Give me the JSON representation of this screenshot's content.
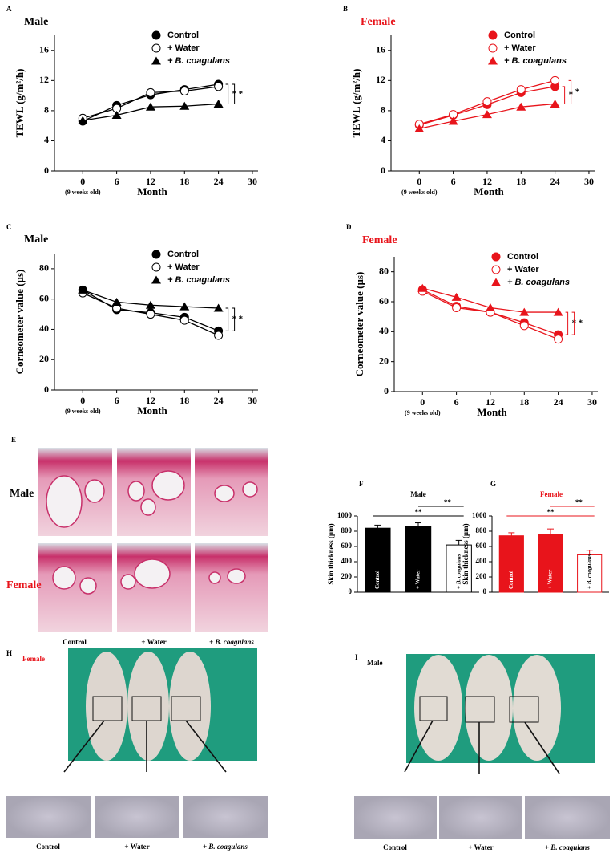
{
  "chart_data": [
    {
      "type": "line",
      "panel": "A",
      "title": "Male",
      "title_color": "#000000",
      "xlabel": "Month",
      "ylabel": "TEWL (g/m²/h)",
      "x": [
        0,
        6,
        12,
        18,
        24
      ],
      "xlim": [
        -5,
        31
      ],
      "xticks": [
        0,
        6,
        12,
        18,
        24,
        30
      ],
      "x_note": "(9 weeks old)",
      "ylim": [
        0,
        18
      ],
      "yticks": [
        0,
        4,
        8,
        12,
        16
      ],
      "series": [
        {
          "name": "Control",
          "color": "#000000",
          "marker": "circle",
          "values": [
            6.6,
            8.7,
            10.1,
            10.8,
            11.5
          ]
        },
        {
          "name": "+ Water",
          "color": "#000000",
          "marker": "circle-open",
          "values": [
            7.0,
            8.3,
            10.4,
            10.6,
            11.2
          ]
        },
        {
          "name": "+ B. coagulans",
          "color": "#000000",
          "marker": "triangle",
          "values": [
            6.7,
            7.4,
            8.5,
            8.6,
            8.9
          ]
        }
      ],
      "annotations": [
        "*",
        "*"
      ]
    },
    {
      "type": "line",
      "panel": "B",
      "title": "Female",
      "title_color": "#e8141b",
      "xlabel": "Month",
      "ylabel": "TEWL (g/m²/h)",
      "x": [
        0,
        6,
        12,
        18,
        24
      ],
      "xlim": [
        -5,
        31
      ],
      "xticks": [
        0,
        6,
        12,
        18,
        24,
        30
      ],
      "x_note": "(9 weeks old)",
      "ylim": [
        0,
        18
      ],
      "yticks": [
        0,
        4,
        8,
        12,
        16
      ],
      "series": [
        {
          "name": "Control",
          "color": "#e8141b",
          "marker": "circle",
          "values": [
            6.1,
            7.4,
            8.8,
            10.4,
            11.2
          ]
        },
        {
          "name": "+ Water",
          "color": "#e8141b",
          "marker": "circle-open",
          "values": [
            6.2,
            7.5,
            9.2,
            10.8,
            12.0
          ]
        },
        {
          "name": "+ B. coagulans",
          "color": "#e8141b",
          "marker": "triangle",
          "values": [
            5.6,
            6.6,
            7.5,
            8.5,
            8.9
          ]
        }
      ],
      "annotations": [
        "*",
        "*"
      ]
    },
    {
      "type": "line",
      "panel": "C",
      "title": "Male",
      "title_color": "#000000",
      "xlabel": "Month",
      "ylabel": "Corneometer value (µs)",
      "x": [
        0,
        6,
        12,
        18,
        24
      ],
      "xlim": [
        -5,
        31
      ],
      "xticks": [
        0,
        6,
        12,
        18,
        24,
        30
      ],
      "x_note": "(9 weeks old)",
      "ylim": [
        0,
        90
      ],
      "yticks": [
        0,
        20,
        40,
        60,
        80
      ],
      "series": [
        {
          "name": "Control",
          "color": "#000000",
          "marker": "circle",
          "values": [
            66,
            53,
            51,
            48,
            39
          ]
        },
        {
          "name": "+ Water",
          "color": "#000000",
          "marker": "circle-open",
          "values": [
            64,
            54,
            50,
            46,
            36
          ]
        },
        {
          "name": "+ B. coagulans",
          "color": "#000000",
          "marker": "triangle",
          "values": [
            66,
            58,
            56,
            55,
            54
          ]
        }
      ],
      "annotations": [
        "*",
        "*"
      ]
    },
    {
      "type": "line",
      "panel": "D",
      "title": "Female",
      "title_color": "#e8141b",
      "xlabel": "Month",
      "ylabel": "Corneometer value (µs)",
      "x": [
        0,
        6,
        12,
        18,
        24
      ],
      "xlim": [
        -5,
        31
      ],
      "xticks": [
        0,
        6,
        12,
        18,
        24,
        30
      ],
      "x_note": "(9 weeks old)",
      "ylim": [
        0,
        90
      ],
      "yticks": [
        0,
        20,
        40,
        60,
        80
      ],
      "series": [
        {
          "name": "Control",
          "color": "#e8141b",
          "marker": "circle",
          "values": [
            68,
            57,
            53,
            46,
            38
          ]
        },
        {
          "name": "+ Water",
          "color": "#e8141b",
          "marker": "circle-open",
          "values": [
            67,
            56,
            53,
            44,
            35
          ]
        },
        {
          "name": "+ B. coagulans",
          "color": "#e8141b",
          "marker": "triangle",
          "values": [
            69,
            63,
            56,
            53,
            53
          ]
        }
      ],
      "annotations": [
        "*",
        "*"
      ]
    },
    {
      "type": "bar",
      "panel": "F",
      "title": "Male",
      "title_color": "#000000",
      "ylabel": "Skin thickness (µm)",
      "categories": [
        "Control",
        "+ Water",
        "+ B. coagulans"
      ],
      "values": [
        840,
        860,
        620
      ],
      "errors": [
        40,
        50,
        60
      ],
      "colors": [
        "#000000",
        "#000000",
        "#ffffff"
      ],
      "edge_color": "#000000",
      "ylim": [
        0,
        1000
      ],
      "yticks": [
        0,
        200,
        400,
        600,
        800,
        1000
      ],
      "annotations": [
        "**",
        "**"
      ]
    },
    {
      "type": "bar",
      "panel": "G",
      "title": "Female",
      "title_color": "#e8141b",
      "ylabel": "Skin thickness (µm)",
      "categories": [
        "Control",
        "+ Water",
        "+ B. coagulans"
      ],
      "values": [
        740,
        760,
        490
      ],
      "errors": [
        40,
        70,
        60
      ],
      "colors": [
        "#e8141b",
        "#e8141b",
        "#ffffff"
      ],
      "edge_color": "#e8141b",
      "ylim": [
        0,
        1000
      ],
      "yticks": [
        0,
        200,
        400,
        600,
        800,
        1000
      ],
      "annotations": [
        "**",
        "**"
      ]
    }
  ],
  "image_panels": [
    {
      "panel": "E",
      "rows": [
        "Male",
        "Female"
      ],
      "columns": [
        "Control",
        "+ Water",
        "+ B. coagulans"
      ]
    },
    {
      "panel": "H",
      "title": "Female",
      "columns": [
        "Control",
        "+ Water",
        "+ B. coagulans"
      ]
    },
    {
      "panel": "I",
      "title": "Male",
      "columns": [
        "Control",
        "+ Water",
        "+ B. coagulans"
      ]
    }
  ]
}
